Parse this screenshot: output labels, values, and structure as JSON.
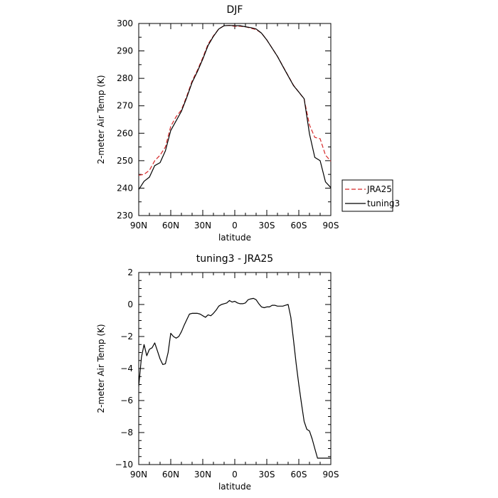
{
  "chart_data": [
    {
      "type": "line",
      "title": "DJF",
      "xlabel": "latitude",
      "ylabel": "2-meter Air Temp (K)",
      "xlim": [
        90,
        -90
      ],
      "ylim": [
        230,
        300
      ],
      "xticks": [
        90,
        60,
        30,
        0,
        -30,
        -60,
        -90
      ],
      "xtick_labels": [
        "90N",
        "60N",
        "30N",
        "0",
        "30S",
        "60S",
        "90S"
      ],
      "yticks": [
        230,
        240,
        250,
        260,
        270,
        280,
        290,
        300
      ],
      "ytick_labels": [
        "230",
        "240",
        "250",
        "260",
        "270",
        "280",
        "290",
        "300"
      ],
      "legend": {
        "position": "outside-right"
      },
      "series": [
        {
          "name": "JRA25",
          "color": "#d62728",
          "style": "dashed",
          "x": [
            90,
            85,
            80,
            75,
            70,
            65,
            60,
            55,
            50,
            45,
            40,
            35,
            30,
            25,
            20,
            15,
            10,
            5,
            0,
            -5,
            -10,
            -15,
            -20,
            -25,
            -30,
            -35,
            -40,
            -45,
            -50,
            -55,
            -60,
            -65,
            -70,
            -75,
            -80,
            -85,
            -90
          ],
          "y": [
            244.7,
            245,
            246.5,
            250,
            252,
            255,
            262.5,
            266,
            268.5,
            273.5,
            279,
            283,
            287.5,
            292.5,
            295.5,
            298,
            299.2,
            299.3,
            299,
            299,
            298.8,
            298.3,
            297.8,
            296.5,
            294,
            291,
            288,
            284.5,
            281,
            277.5,
            275,
            272.5,
            263,
            258.5,
            258,
            252,
            249.8
          ]
        },
        {
          "name": "tuning3",
          "color": "#000000",
          "style": "solid",
          "x": [
            90,
            85,
            80,
            75,
            70,
            65,
            60,
            55,
            50,
            45,
            40,
            35,
            30,
            25,
            20,
            15,
            10,
            5,
            0,
            -5,
            -10,
            -15,
            -20,
            -25,
            -30,
            -35,
            -40,
            -45,
            -50,
            -55,
            -60,
            -65,
            -70,
            -75,
            -80,
            -85,
            -90
          ],
          "y": [
            239.5,
            242.5,
            244,
            248.2,
            249.3,
            253.6,
            261,
            264.5,
            268,
            273,
            278.5,
            282.5,
            287,
            292,
            295.3,
            298,
            299.2,
            299.3,
            299.2,
            299.2,
            298.8,
            298.5,
            298,
            296.5,
            294,
            291,
            288,
            284.4,
            280.9,
            277.4,
            275,
            272.6,
            259.8,
            251.2,
            250,
            242.3,
            240.2
          ]
        }
      ]
    },
    {
      "type": "line",
      "title": "tuning3 - JRA25",
      "xlabel": "latitude",
      "ylabel": "2-meter Air Temp (K)",
      "xlim": [
        90,
        -90
      ],
      "ylim": [
        -10,
        2
      ],
      "xticks": [
        90,
        60,
        30,
        0,
        -30,
        -60,
        -90
      ],
      "xtick_labels": [
        "90N",
        "60N",
        "30N",
        "0",
        "30S",
        "60S",
        "90S"
      ],
      "yticks": [
        -10,
        -8,
        -6,
        -4,
        -2,
        0,
        2
      ],
      "ytick_labels": [
        "−10",
        "−8",
        "−6",
        "−4",
        "−2",
        "0",
        "2"
      ],
      "series": [
        {
          "color": "#000000",
          "style": "solid",
          "x": [
            90,
            87.5,
            85,
            82.5,
            80,
            77.5,
            75,
            72.5,
            70,
            67.5,
            65,
            62.5,
            60,
            57.5,
            55,
            52.5,
            50,
            47.5,
            45,
            42.5,
            40,
            37.5,
            35,
            32.5,
            30,
            27.5,
            25,
            22.5,
            20,
            17.5,
            15,
            12.5,
            10,
            7.5,
            5,
            2.5,
            0,
            -2.5,
            -5,
            -7.5,
            -10,
            -12.5,
            -15,
            -17.5,
            -20,
            -22.5,
            -25,
            -27.5,
            -30,
            -32.5,
            -35,
            -37.5,
            -40,
            -42.5,
            -45,
            -47.5,
            -50,
            -52.5,
            -55,
            -57.5,
            -60,
            -62.5,
            -65,
            -67.5,
            -70,
            -72.5,
            -75,
            -77.5,
            -80,
            -82.5,
            -85,
            -87.5,
            -90
          ],
          "y": [
            -5.1,
            -3.3,
            -2.5,
            -3.2,
            -2.8,
            -2.7,
            -2.4,
            -2.9,
            -3.4,
            -3.75,
            -3.7,
            -3,
            -1.8,
            -2,
            -2.1,
            -2,
            -1.7,
            -1.3,
            -0.95,
            -0.6,
            -0.55,
            -0.55,
            -0.55,
            -0.6,
            -0.7,
            -0.8,
            -0.65,
            -0.7,
            -0.55,
            -0.35,
            -0.1,
            0,
            0.05,
            0.1,
            0.25,
            0.15,
            0.2,
            0.1,
            0.05,
            0.05,
            0.1,
            0.3,
            0.35,
            0.38,
            0.3,
            0.05,
            -0.15,
            -0.2,
            -0.15,
            -0.15,
            -0.05,
            -0.05,
            -0.1,
            -0.1,
            -0.1,
            -0.05,
            0,
            -0.8,
            -2.2,
            -3.7,
            -5,
            -6.2,
            -7.3,
            -7.8,
            -7.9,
            -8.4,
            -9,
            -9.6,
            -9.6,
            -9.6,
            -9.6,
            -9.6,
            -9.6
          ]
        }
      ]
    }
  ]
}
